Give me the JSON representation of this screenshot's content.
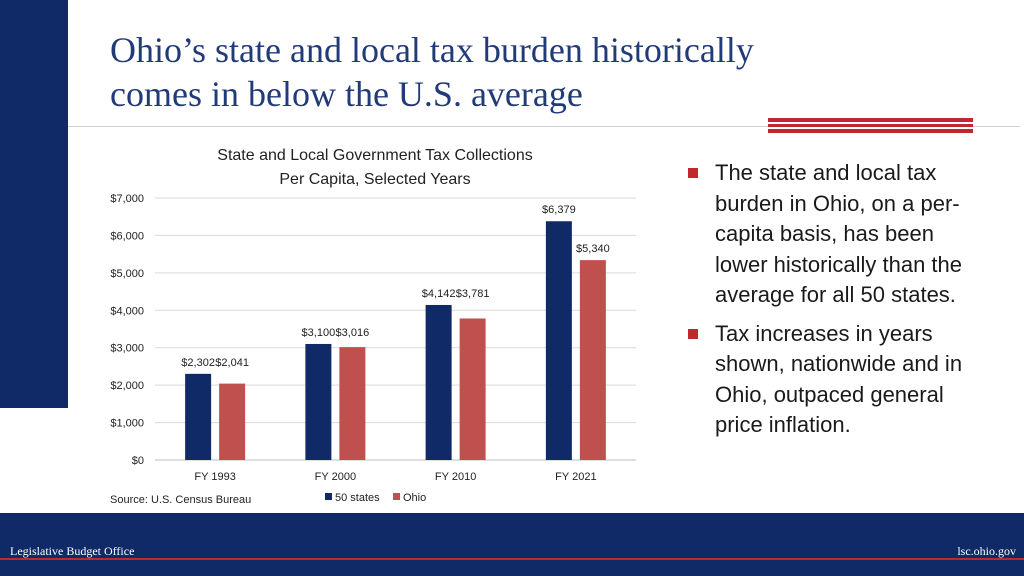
{
  "slide": {
    "title_line1": "Ohio’s state and local tax burden historically",
    "title_line2": "comes in below the U.S. average",
    "source": "Source: U.S. Census Bureau",
    "bullets": [
      "The state and local tax burden in Ohio, on a per-capita basis, has been lower historically than the average for all 50 states.",
      "Tax increases in years shown, nationwide and in Ohio, outpaced general price inflation."
    ],
    "footer_left": "Legislative Budget Office",
    "footer_right": "lsc.ohio.gov"
  },
  "colors": {
    "navy": "#0f2a66",
    "red": "#c0282e",
    "series_50_states": "#0f2a66",
    "series_ohio": "#c0504d"
  },
  "chart_data": {
    "type": "bar",
    "title_line1": "State and Local Government Tax Collections",
    "title_line2": "Per Capita, Selected Years",
    "categories": [
      "FY 1993",
      "FY 2000",
      "FY 2010",
      "FY 2021"
    ],
    "series": [
      {
        "name": "50 states",
        "values": [
          2302,
          3100,
          4142,
          6379
        ],
        "labels": [
          "$2,302",
          "$3,100",
          "$4,142",
          "$6,379"
        ]
      },
      {
        "name": "Ohio",
        "values": [
          2041,
          3016,
          3781,
          5340
        ],
        "labels": [
          "$2,041",
          "$3,016",
          "$3,781",
          "$5,340"
        ]
      }
    ],
    "ylim": [
      0,
      7000
    ],
    "yticks": [
      0,
      1000,
      2000,
      3000,
      4000,
      5000,
      6000,
      7000
    ],
    "ytick_labels": [
      "$0",
      "$1,000",
      "$2,000",
      "$3,000",
      "$4,000",
      "$5,000",
      "$6,000",
      "$7,000"
    ],
    "grid": true,
    "legend": "bottom"
  }
}
